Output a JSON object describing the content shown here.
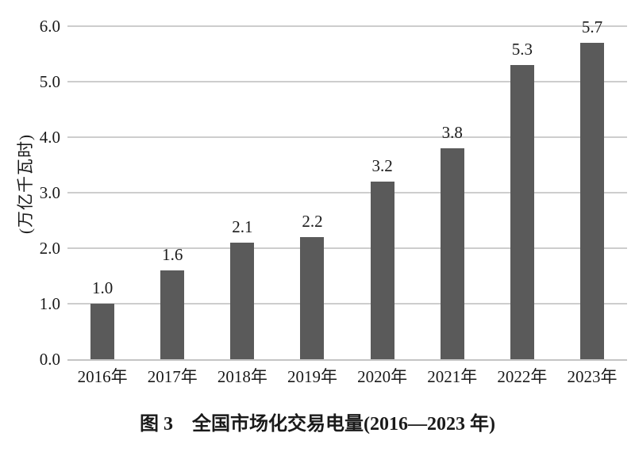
{
  "figure": {
    "caption": "图 3　全国市场化交易电量(2016—2023 年)"
  },
  "chart_data": {
    "type": "bar",
    "title": "全国市场化交易电量(2016—2023 年)",
    "categories": [
      "2016年",
      "2017年",
      "2018年",
      "2019年",
      "2020年",
      "2021年",
      "2022年",
      "2023年"
    ],
    "values": [
      1.0,
      1.6,
      2.1,
      2.2,
      3.2,
      3.8,
      5.3,
      5.7
    ],
    "value_labels": [
      "1.0",
      "1.6",
      "2.1",
      "2.2",
      "3.2",
      "3.8",
      "5.3",
      "5.7"
    ],
    "xlabel": "",
    "ylabel": "(万亿千瓦时)",
    "ylim": [
      0.0,
      6.0
    ],
    "ytick_step": 1.0,
    "yticks": [
      "0.0",
      "1.0",
      "2.0",
      "3.0",
      "4.0",
      "5.0",
      "6.0"
    ],
    "grid": "horizontal",
    "legend": "none",
    "colors": {
      "bar": "#5a5a5a",
      "gridline": "#cdcdcd",
      "axis_line": "#c4c4c4",
      "text": "#1a1a1a",
      "background": "#ffffff"
    }
  }
}
